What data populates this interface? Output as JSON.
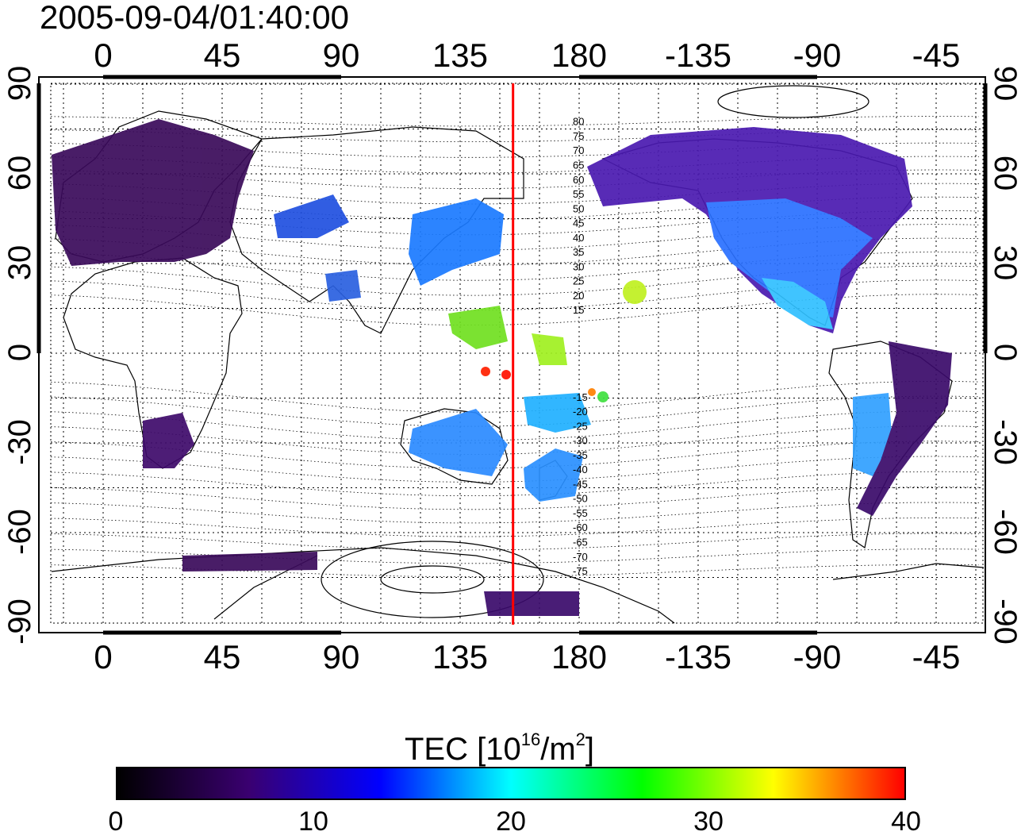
{
  "timestamp": "2005-09-04/01:40:00",
  "map": {
    "lon_ticks_top": [
      "0",
      "45",
      "90",
      "135",
      "180",
      "-135",
      "-90",
      "-45"
    ],
    "lon_ticks_bottom": [
      "0",
      "45",
      "90",
      "135",
      "180",
      "-135",
      "-90",
      "-45"
    ],
    "lat_ticks_left": [
      "90",
      "60",
      "30",
      "0",
      "-30",
      "-60",
      "-90"
    ],
    "lat_ticks_right": [
      "90",
      "60",
      "30",
      "0",
      "-30",
      "-60",
      "-90"
    ],
    "marker_meridian_lon": 155,
    "marker_color": "#ff0000",
    "contour_labels": [
      "80",
      "75",
      "70",
      "65",
      "60",
      "55",
      "50",
      "45",
      "40",
      "35",
      "30",
      "25",
      "20",
      "15",
      "-15",
      "-20",
      "-25",
      "-30",
      "-35",
      "-40",
      "-45",
      "-50",
      "-55",
      "-60",
      "-65",
      "-70",
      "-75"
    ]
  },
  "colorbar": {
    "title_prefix": "TEC  [10",
    "title_exp1": "16",
    "title_mid": "/m",
    "title_exp2": "2",
    "title_suffix": "]",
    "ticks": [
      "0",
      "10",
      "20",
      "30",
      "40"
    ],
    "min": 0,
    "max": 40,
    "colors": [
      "#000000",
      "#3a0070",
      "#0000ff",
      "#00ffff",
      "#00ff00",
      "#ffff00",
      "#ff0000"
    ]
  }
}
